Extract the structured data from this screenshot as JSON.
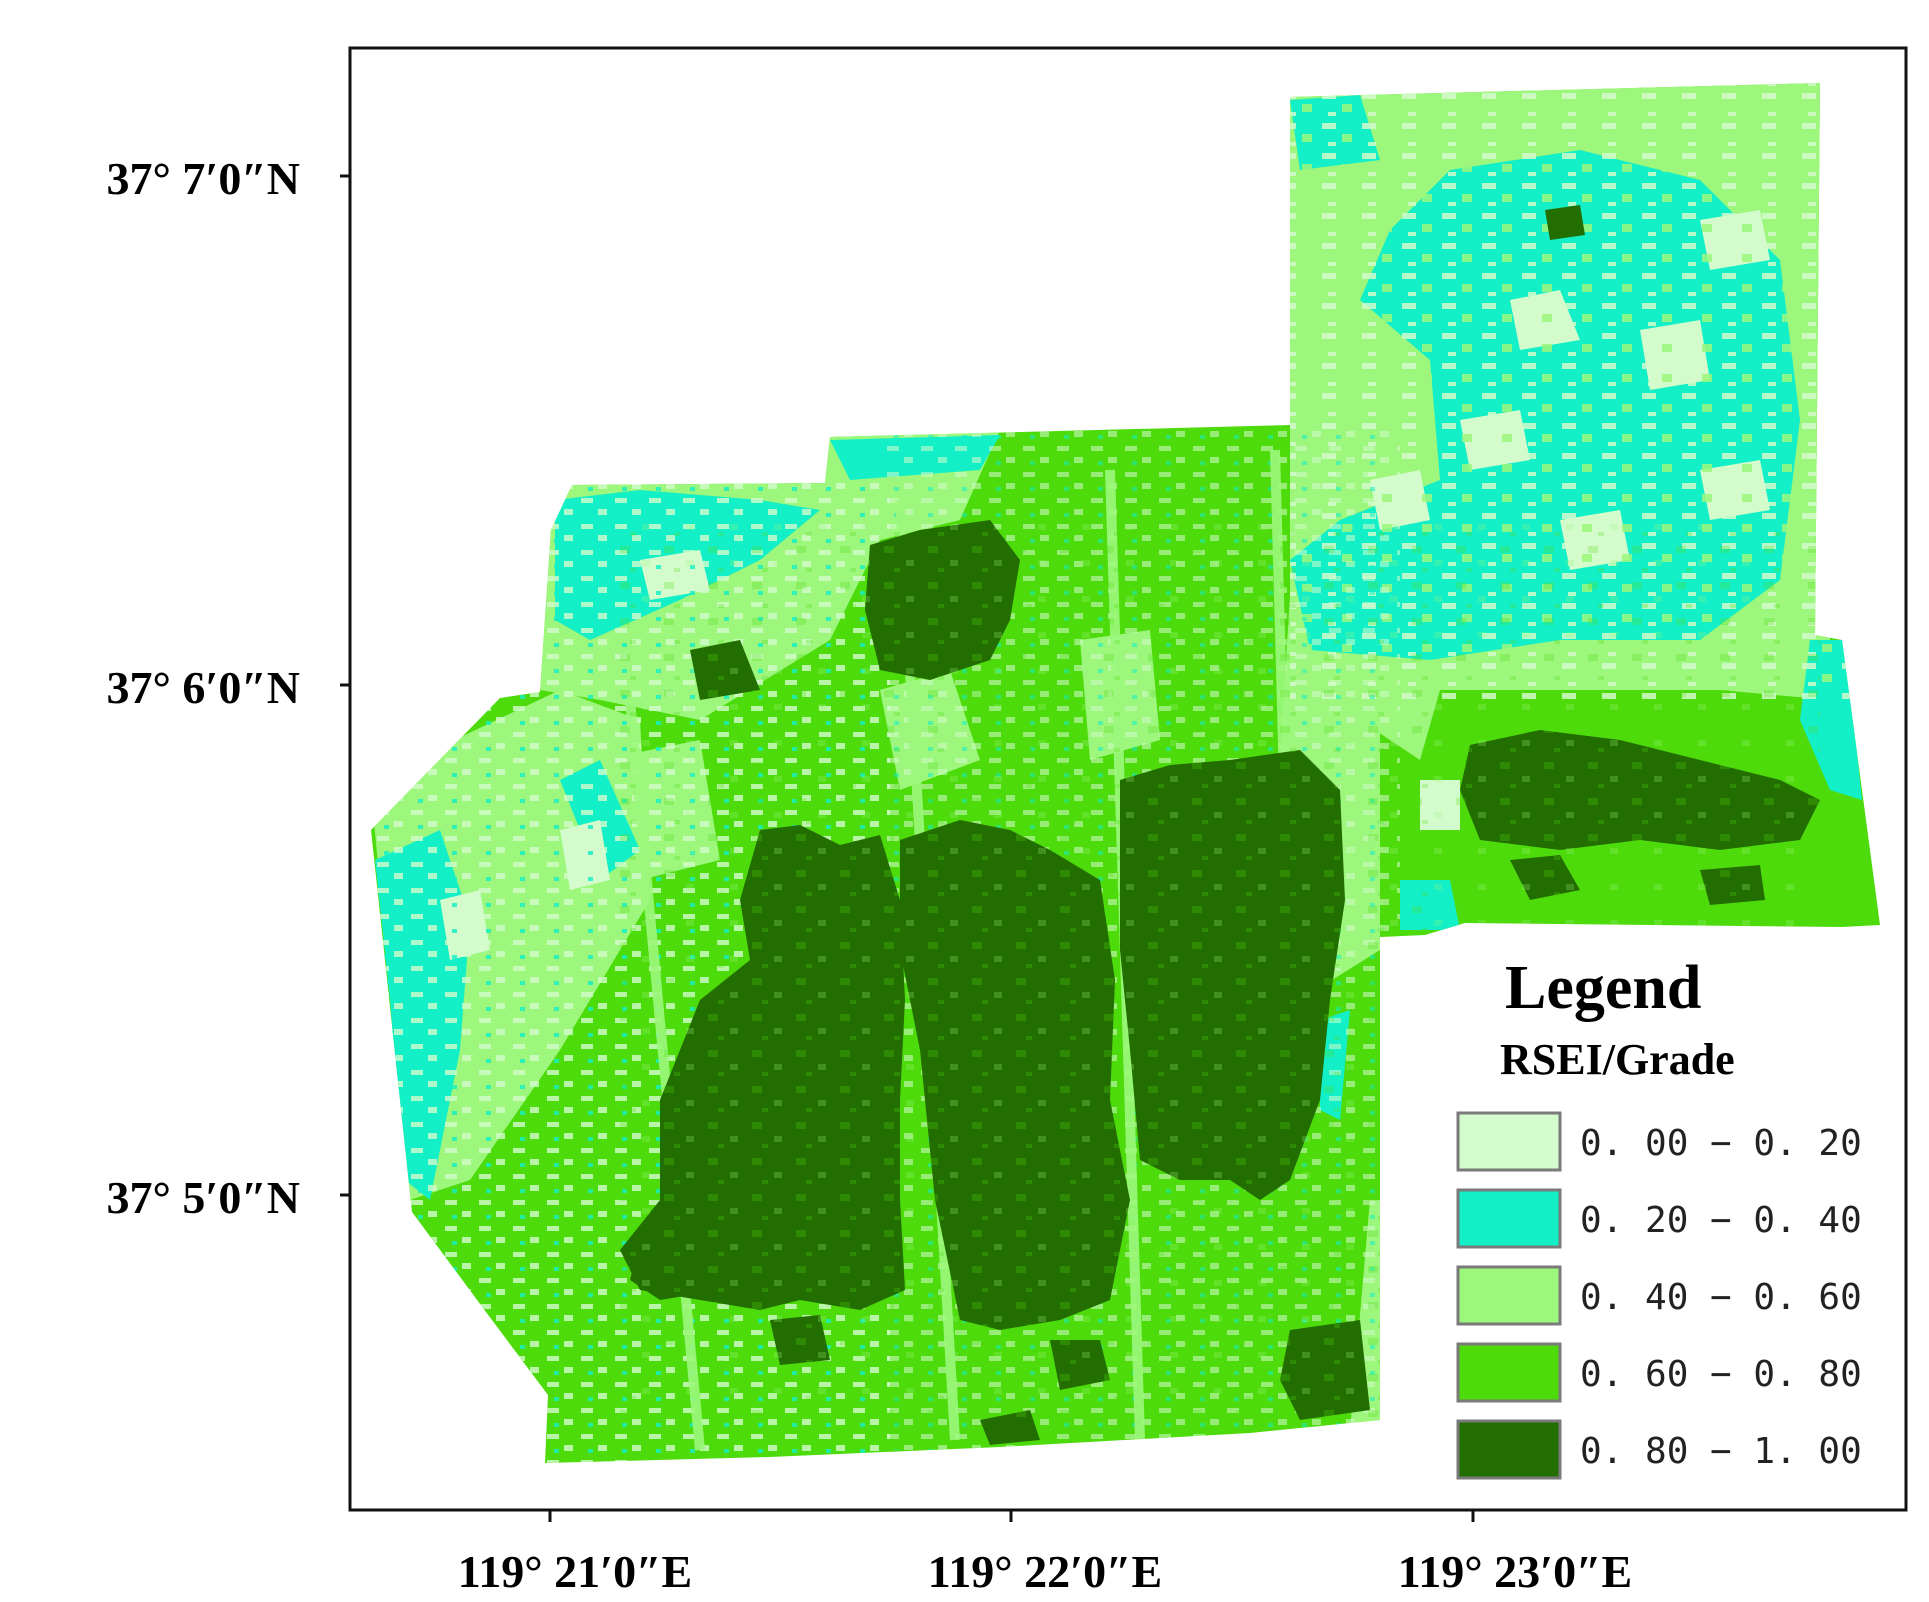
{
  "map": {
    "lat_labels": [
      "37° 7′0″N",
      "37° 6′0″N",
      "37° 5′0″N"
    ],
    "lon_labels": [
      "119° 21′0″E",
      "119° 22′0″E",
      "119° 23′0″E"
    ]
  },
  "legend": {
    "title": "Legend",
    "subtitle": "RSEI/Grade",
    "classes": [
      {
        "label": "0. 00 − 0. 20",
        "range": [
          0.0,
          0.2
        ],
        "color": "#d3fbcc"
      },
      {
        "label": "0. 20 − 0. 40",
        "range": [
          0.2,
          0.4
        ],
        "color": "#13efc6"
      },
      {
        "label": "0. 40 − 0. 60",
        "range": [
          0.4,
          0.6
        ],
        "color": "#9cf77c"
      },
      {
        "label": "0. 60 − 0. 80",
        "range": [
          0.6,
          0.8
        ],
        "color": "#4ddb0c"
      },
      {
        "label": "0. 80 − 1. 00",
        "range": [
          0.8,
          1.0
        ],
        "color": "#236e00"
      }
    ]
  }
}
